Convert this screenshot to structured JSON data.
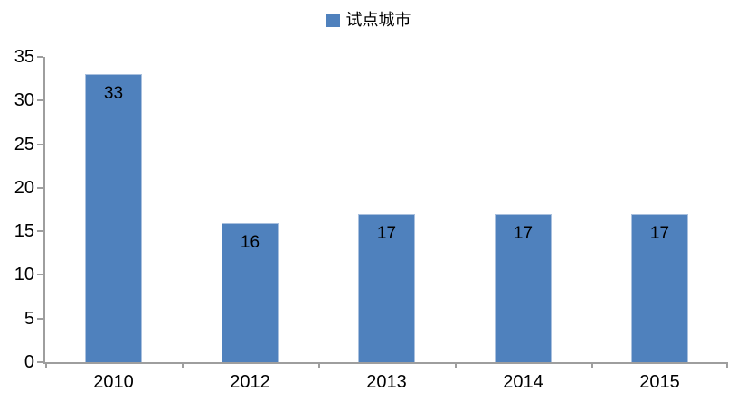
{
  "legend": {
    "label": "试点城市",
    "marker_icon": "square-icon"
  },
  "colors": {
    "bar_fill": "#4F81BD",
    "bar_edge": "#A9C0DE",
    "axis_line": "#9E9E9E",
    "text": "#000000",
    "background": "#FFFFFF"
  },
  "chart_data": {
    "type": "bar",
    "title": "",
    "xlabel": "",
    "ylabel": "",
    "categories": [
      "2010",
      "2012",
      "2013",
      "2014",
      "2015"
    ],
    "series": [
      {
        "name": "试点城市",
        "values": [
          33,
          16,
          17,
          17,
          17
        ]
      }
    ],
    "value_labels": [
      33,
      16,
      17,
      17,
      17
    ],
    "value_label_position": "inside-top",
    "ylim": [
      0,
      35
    ],
    "yticks": [
      0,
      5,
      10,
      15,
      20,
      25,
      30,
      35
    ],
    "grid": false,
    "legend_position": "top-center",
    "bar_width_fraction": 0.42
  }
}
